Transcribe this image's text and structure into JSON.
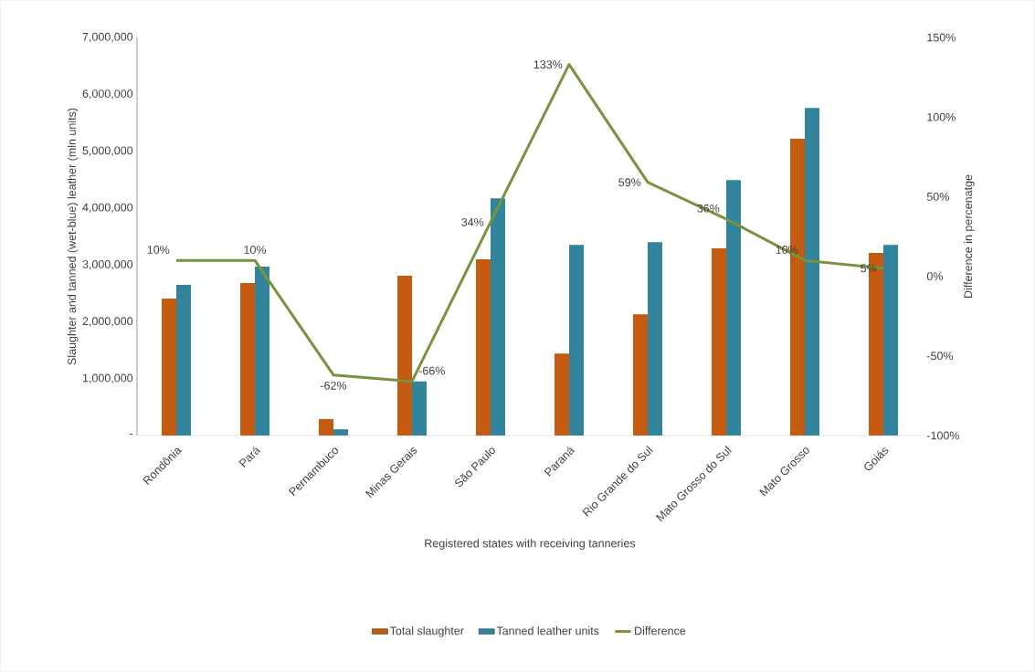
{
  "chart_data": {
    "type": "bar",
    "xlabel": "Registered states with receiving tanneries",
    "ylabel": "Slaughter and  tanned (wet-blue) leather (mln units)",
    "y2label": "Difference in percenatge",
    "categories": [
      "Rondônia",
      "Pará",
      "Pernambuco",
      "Minas Gerais",
      "São Paulo",
      "Paraná",
      "Rio Grande do Sul",
      "Mato Grosso do Sul",
      "Mato Grosso",
      "Goiás"
    ],
    "series": [
      {
        "name": "Total slaughter",
        "color": "#c55a11",
        "values": [
          2410000,
          2680000,
          290000,
          2810000,
          3100000,
          1440000,
          2130000,
          3290000,
          5220000,
          3210000
        ]
      },
      {
        "name": "Tanned leather units",
        "color": "#31849b",
        "values": [
          2650000,
          2970000,
          110000,
          950000,
          4170000,
          3350000,
          3400000,
          4490000,
          5760000,
          3350000
        ]
      },
      {
        "name": "Difference",
        "type": "line",
        "axis": "y2",
        "color": "#77933c",
        "values": [
          10,
          10,
          -62,
          -66,
          34,
          133,
          59,
          36,
          10,
          5
        ],
        "value_labels": [
          "10%",
          "10%",
          "-62%",
          "-66%",
          "34%",
          "133%",
          "59%",
          "36%",
          "10%",
          "5%"
        ]
      }
    ],
    "ylim": [
      0,
      7000000
    ],
    "yticks": [
      {
        "value": 0,
        "label": "-"
      },
      {
        "value": 1000000,
        "label": "1,000,000"
      },
      {
        "value": 2000000,
        "label": "2,000,000"
      },
      {
        "value": 3000000,
        "label": "3,000,000"
      },
      {
        "value": 4000000,
        "label": "4,000,000"
      },
      {
        "value": 5000000,
        "label": "5,000,000"
      },
      {
        "value": 6000000,
        "label": "6,000,000"
      },
      {
        "value": 7000000,
        "label": "7,000,000"
      }
    ],
    "y2lim": [
      -100,
      150
    ],
    "y2ticks": [
      {
        "value": -100,
        "label": "-100%"
      },
      {
        "value": -50,
        "label": "-50%"
      },
      {
        "value": 0,
        "label": "0%"
      },
      {
        "value": 50,
        "label": "50%"
      },
      {
        "value": 100,
        "label": "100%"
      },
      {
        "value": 150,
        "label": "150%"
      }
    ],
    "legend": "bottom",
    "marker": "none",
    "line_style": "solid"
  }
}
